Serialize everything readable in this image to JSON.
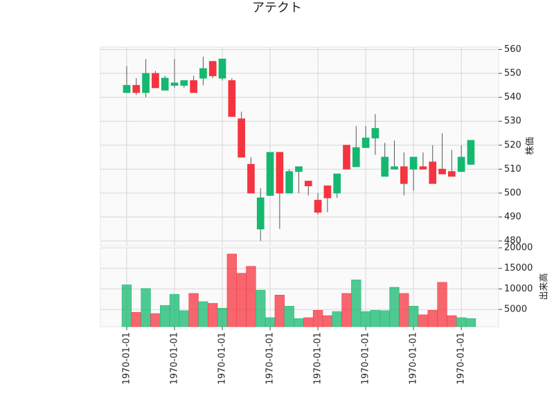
{
  "chart_data": [
    {
      "type": "candlestick",
      "title": "アテクト",
      "ylabel": "株価",
      "up_color": "#14b86f",
      "down_color": "#f5343f",
      "wick_color": "#555555",
      "open": [
        542,
        545,
        542,
        550,
        543,
        545,
        545,
        547,
        548,
        555,
        548,
        547,
        531,
        512,
        485,
        499,
        517,
        500,
        509,
        505,
        497,
        503,
        500,
        520,
        511,
        519,
        523,
        507,
        510,
        511,
        510,
        511,
        513,
        510,
        509,
        509,
        512
      ],
      "high": [
        553,
        548,
        556,
        551,
        549,
        556,
        547,
        549,
        557,
        555,
        556,
        548,
        534,
        515,
        502,
        517,
        517,
        510,
        511,
        505,
        500,
        503,
        508,
        520,
        528,
        528,
        533,
        521,
        522,
        517,
        515,
        517,
        520,
        525,
        518,
        520,
        522
      ],
      "low": [
        542,
        541,
        540,
        544,
        543,
        544,
        544,
        542,
        545,
        548,
        547,
        532,
        515,
        500,
        480,
        499,
        485,
        500,
        500,
        499,
        491,
        492,
        498,
        510,
        511,
        519,
        516,
        507,
        510,
        499,
        501,
        510,
        504,
        508,
        507,
        509,
        512
      ],
      "close": [
        545,
        542,
        550,
        544,
        548,
        546,
        547,
        542,
        552,
        549,
        556,
        532,
        515,
        500,
        498,
        517,
        500,
        509,
        511,
        503,
        492,
        498,
        508,
        510,
        519,
        523,
        527,
        515,
        511,
        504,
        515,
        510,
        504,
        508,
        507,
        515,
        522
      ],
      "xlim": [
        -2.75,
        38.9
      ],
      "xticks": [
        {
          "value": 0,
          "label": "1970-01-01"
        },
        {
          "value": 5,
          "label": "1970-01-01"
        },
        {
          "value": 10,
          "label": "1970-01-01"
        },
        {
          "value": 15,
          "label": "1970-01-01"
        },
        {
          "value": 20,
          "label": "1970-01-01"
        },
        {
          "value": 25,
          "label": "1970-01-01"
        },
        {
          "value": 30,
          "label": "1970-01-01"
        },
        {
          "value": 35,
          "label": "1970-01-01"
        }
      ],
      "ylim": [
        478,
        561
      ],
      "yticks": [
        480,
        490,
        500,
        510,
        520,
        530,
        540,
        550,
        560
      ],
      "grid": true
    },
    {
      "type": "volume",
      "ylabel": "出来高",
      "values": [
        11000,
        4300,
        10100,
        4000,
        6000,
        8700,
        4700,
        8900,
        6900,
        6500,
        5300,
        18500,
        13800,
        15500,
        9700,
        3000,
        8500,
        5800,
        2800,
        3000,
        4800,
        3500,
        4500,
        8900,
        12200,
        4500,
        4800,
        4700,
        10400,
        8900,
        5800,
        3700,
        4800,
        11600,
        3500,
        3000,
        2800
      ],
      "ylim": [
        800,
        20000
      ],
      "yticks": [
        5000,
        10000,
        15000,
        20000
      ],
      "grid": true
    }
  ]
}
